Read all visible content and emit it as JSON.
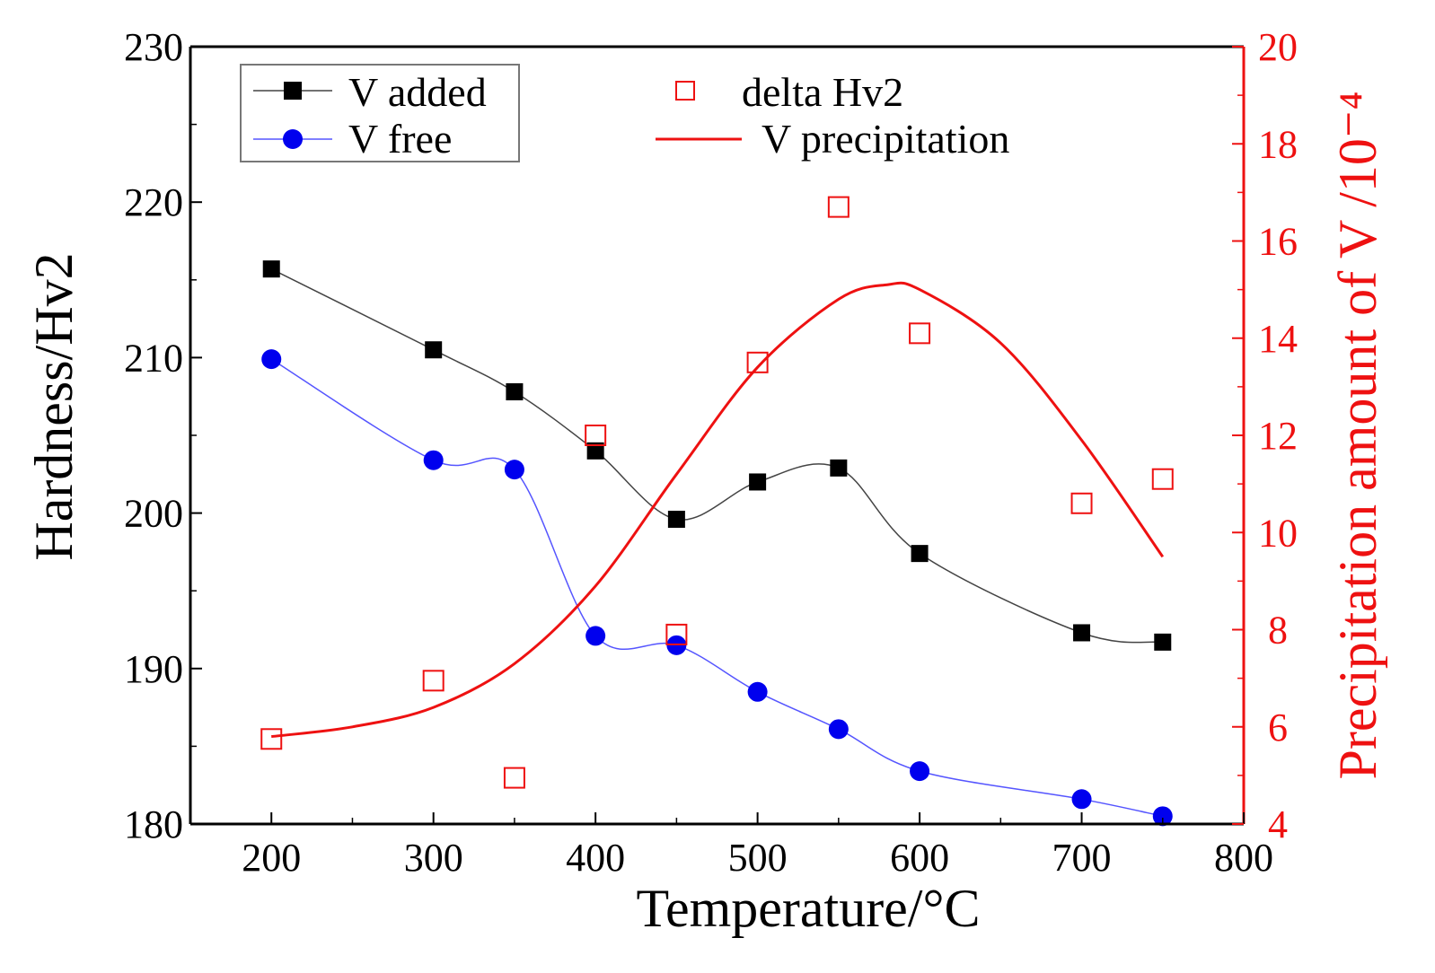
{
  "chart_data": {
    "type": "line",
    "title": "",
    "xlabel": "Temperature/°C",
    "ylabel": "Hardness/Hv2",
    "y2label": "Precipitation amount of V /10⁻⁴",
    "xlim": [
      150,
      800
    ],
    "ylim": [
      180,
      230
    ],
    "y2lim": [
      4,
      20
    ],
    "xticks": [
      "200",
      "300",
      "400",
      "500",
      "600",
      "700",
      "800"
    ],
    "xtick_values": [
      200,
      300,
      400,
      500,
      600,
      700,
      800
    ],
    "yticks": [
      "180",
      "190",
      "200",
      "210",
      "220",
      "230"
    ],
    "ytick_values": [
      180,
      190,
      200,
      210,
      220,
      230
    ],
    "y2ticks": [
      "4",
      "6",
      "8",
      "10",
      "12",
      "14",
      "16",
      "18",
      "20"
    ],
    "y2tick_values": [
      4,
      6,
      8,
      10,
      12,
      14,
      16,
      18,
      20
    ],
    "grid": false,
    "series": [
      {
        "name": "V added",
        "axis": "left",
        "marker": "filled-square",
        "color": "#000000",
        "line_color": "#444444",
        "x": [
          200,
          300,
          350,
          400,
          450,
          500,
          550,
          600,
          700,
          750
        ],
        "values": [
          215.7,
          210.5,
          207.8,
          204.0,
          199.6,
          202.0,
          202.9,
          197.4,
          192.3,
          191.7
        ]
      },
      {
        "name": "V free",
        "axis": "left",
        "marker": "filled-circle",
        "color": "#0000ee",
        "line_color": "#5555ff",
        "x": [
          200,
          300,
          350,
          400,
          450,
          500,
          550,
          600,
          700,
          750
        ],
        "values": [
          209.9,
          203.4,
          202.8,
          192.1,
          191.5,
          188.5,
          186.1,
          183.4,
          181.6,
          180.5
        ]
      },
      {
        "name": "delta Hv2",
        "axis": "right",
        "marker": "open-square",
        "color": "#ee1111",
        "x": [
          200,
          300,
          350,
          400,
          450,
          500,
          550,
          600,
          700,
          750
        ],
        "values": [
          5.75,
          6.95,
          4.95,
          12.0,
          7.9,
          13.5,
          16.7,
          14.1,
          10.6,
          11.1
        ]
      },
      {
        "name": "V precipitation",
        "axis": "right",
        "marker": "none",
        "color": "#ee1111",
        "x": [
          200,
          250,
          300,
          350,
          400,
          450,
          500,
          550,
          580,
          600,
          650,
          700,
          750
        ],
        "values": [
          5.8,
          6.0,
          6.4,
          7.3,
          8.9,
          11.2,
          13.4,
          14.8,
          15.1,
          15.0,
          13.9,
          11.9,
          9.5
        ]
      }
    ],
    "legend": {
      "placement": "top",
      "left_box_entries": [
        "V added",
        "V free"
      ],
      "right_entries": [
        "delta Hv2",
        "V precipitation"
      ]
    }
  }
}
